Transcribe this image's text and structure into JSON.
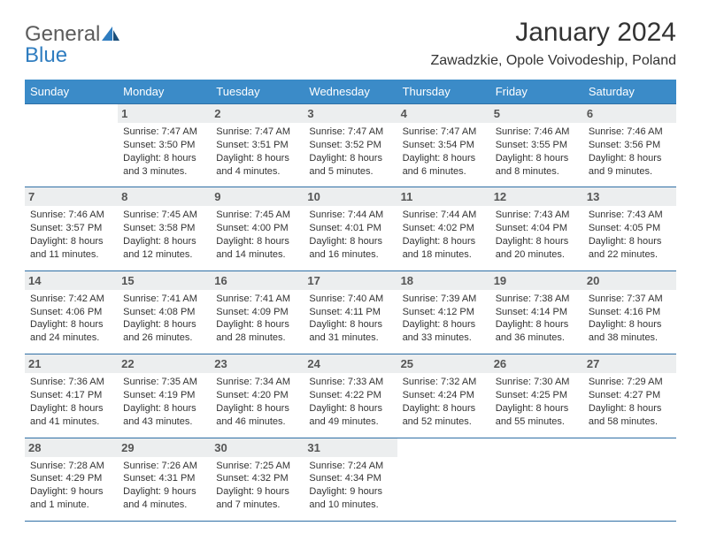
{
  "brand": {
    "word1": "General",
    "word2": "Blue"
  },
  "title": "January 2024",
  "location": "Zawadzkie, Opole Voivodeship, Poland",
  "colors": {
    "header_bg": "#3b8bc8",
    "header_text": "#ffffff",
    "daynum_bg": "#eceeef",
    "cell_border": "#2f6fa5",
    "logo_blue": "#2f7dc0",
    "body_text": "#333333"
  },
  "typography": {
    "title_fontsize": 30,
    "location_fontsize": 16,
    "weekday_fontsize": 13,
    "daynum_fontsize": 13,
    "info_fontsize": 11,
    "font_family": "Arial"
  },
  "weekdays": [
    "Sunday",
    "Monday",
    "Tuesday",
    "Wednesday",
    "Thursday",
    "Friday",
    "Saturday"
  ],
  "weeks": [
    [
      {
        "day": "",
        "sunrise": "",
        "sunset": "",
        "daylight1": "",
        "daylight2": ""
      },
      {
        "day": "1",
        "sunrise": "Sunrise: 7:47 AM",
        "sunset": "Sunset: 3:50 PM",
        "daylight1": "Daylight: 8 hours",
        "daylight2": "and 3 minutes."
      },
      {
        "day": "2",
        "sunrise": "Sunrise: 7:47 AM",
        "sunset": "Sunset: 3:51 PM",
        "daylight1": "Daylight: 8 hours",
        "daylight2": "and 4 minutes."
      },
      {
        "day": "3",
        "sunrise": "Sunrise: 7:47 AM",
        "sunset": "Sunset: 3:52 PM",
        "daylight1": "Daylight: 8 hours",
        "daylight2": "and 5 minutes."
      },
      {
        "day": "4",
        "sunrise": "Sunrise: 7:47 AM",
        "sunset": "Sunset: 3:54 PM",
        "daylight1": "Daylight: 8 hours",
        "daylight2": "and 6 minutes."
      },
      {
        "day": "5",
        "sunrise": "Sunrise: 7:46 AM",
        "sunset": "Sunset: 3:55 PM",
        "daylight1": "Daylight: 8 hours",
        "daylight2": "and 8 minutes."
      },
      {
        "day": "6",
        "sunrise": "Sunrise: 7:46 AM",
        "sunset": "Sunset: 3:56 PM",
        "daylight1": "Daylight: 8 hours",
        "daylight2": "and 9 minutes."
      }
    ],
    [
      {
        "day": "7",
        "sunrise": "Sunrise: 7:46 AM",
        "sunset": "Sunset: 3:57 PM",
        "daylight1": "Daylight: 8 hours",
        "daylight2": "and 11 minutes."
      },
      {
        "day": "8",
        "sunrise": "Sunrise: 7:45 AM",
        "sunset": "Sunset: 3:58 PM",
        "daylight1": "Daylight: 8 hours",
        "daylight2": "and 12 minutes."
      },
      {
        "day": "9",
        "sunrise": "Sunrise: 7:45 AM",
        "sunset": "Sunset: 4:00 PM",
        "daylight1": "Daylight: 8 hours",
        "daylight2": "and 14 minutes."
      },
      {
        "day": "10",
        "sunrise": "Sunrise: 7:44 AM",
        "sunset": "Sunset: 4:01 PM",
        "daylight1": "Daylight: 8 hours",
        "daylight2": "and 16 minutes."
      },
      {
        "day": "11",
        "sunrise": "Sunrise: 7:44 AM",
        "sunset": "Sunset: 4:02 PM",
        "daylight1": "Daylight: 8 hours",
        "daylight2": "and 18 minutes."
      },
      {
        "day": "12",
        "sunrise": "Sunrise: 7:43 AM",
        "sunset": "Sunset: 4:04 PM",
        "daylight1": "Daylight: 8 hours",
        "daylight2": "and 20 minutes."
      },
      {
        "day": "13",
        "sunrise": "Sunrise: 7:43 AM",
        "sunset": "Sunset: 4:05 PM",
        "daylight1": "Daylight: 8 hours",
        "daylight2": "and 22 minutes."
      }
    ],
    [
      {
        "day": "14",
        "sunrise": "Sunrise: 7:42 AM",
        "sunset": "Sunset: 4:06 PM",
        "daylight1": "Daylight: 8 hours",
        "daylight2": "and 24 minutes."
      },
      {
        "day": "15",
        "sunrise": "Sunrise: 7:41 AM",
        "sunset": "Sunset: 4:08 PM",
        "daylight1": "Daylight: 8 hours",
        "daylight2": "and 26 minutes."
      },
      {
        "day": "16",
        "sunrise": "Sunrise: 7:41 AM",
        "sunset": "Sunset: 4:09 PM",
        "daylight1": "Daylight: 8 hours",
        "daylight2": "and 28 minutes."
      },
      {
        "day": "17",
        "sunrise": "Sunrise: 7:40 AM",
        "sunset": "Sunset: 4:11 PM",
        "daylight1": "Daylight: 8 hours",
        "daylight2": "and 31 minutes."
      },
      {
        "day": "18",
        "sunrise": "Sunrise: 7:39 AM",
        "sunset": "Sunset: 4:12 PM",
        "daylight1": "Daylight: 8 hours",
        "daylight2": "and 33 minutes."
      },
      {
        "day": "19",
        "sunrise": "Sunrise: 7:38 AM",
        "sunset": "Sunset: 4:14 PM",
        "daylight1": "Daylight: 8 hours",
        "daylight2": "and 36 minutes."
      },
      {
        "day": "20",
        "sunrise": "Sunrise: 7:37 AM",
        "sunset": "Sunset: 4:16 PM",
        "daylight1": "Daylight: 8 hours",
        "daylight2": "and 38 minutes."
      }
    ],
    [
      {
        "day": "21",
        "sunrise": "Sunrise: 7:36 AM",
        "sunset": "Sunset: 4:17 PM",
        "daylight1": "Daylight: 8 hours",
        "daylight2": "and 41 minutes."
      },
      {
        "day": "22",
        "sunrise": "Sunrise: 7:35 AM",
        "sunset": "Sunset: 4:19 PM",
        "daylight1": "Daylight: 8 hours",
        "daylight2": "and 43 minutes."
      },
      {
        "day": "23",
        "sunrise": "Sunrise: 7:34 AM",
        "sunset": "Sunset: 4:20 PM",
        "daylight1": "Daylight: 8 hours",
        "daylight2": "and 46 minutes."
      },
      {
        "day": "24",
        "sunrise": "Sunrise: 7:33 AM",
        "sunset": "Sunset: 4:22 PM",
        "daylight1": "Daylight: 8 hours",
        "daylight2": "and 49 minutes."
      },
      {
        "day": "25",
        "sunrise": "Sunrise: 7:32 AM",
        "sunset": "Sunset: 4:24 PM",
        "daylight1": "Daylight: 8 hours",
        "daylight2": "and 52 minutes."
      },
      {
        "day": "26",
        "sunrise": "Sunrise: 7:30 AM",
        "sunset": "Sunset: 4:25 PM",
        "daylight1": "Daylight: 8 hours",
        "daylight2": "and 55 minutes."
      },
      {
        "day": "27",
        "sunrise": "Sunrise: 7:29 AM",
        "sunset": "Sunset: 4:27 PM",
        "daylight1": "Daylight: 8 hours",
        "daylight2": "and 58 minutes."
      }
    ],
    [
      {
        "day": "28",
        "sunrise": "Sunrise: 7:28 AM",
        "sunset": "Sunset: 4:29 PM",
        "daylight1": "Daylight: 9 hours",
        "daylight2": "and 1 minute."
      },
      {
        "day": "29",
        "sunrise": "Sunrise: 7:26 AM",
        "sunset": "Sunset: 4:31 PM",
        "daylight1": "Daylight: 9 hours",
        "daylight2": "and 4 minutes."
      },
      {
        "day": "30",
        "sunrise": "Sunrise: 7:25 AM",
        "sunset": "Sunset: 4:32 PM",
        "daylight1": "Daylight: 9 hours",
        "daylight2": "and 7 minutes."
      },
      {
        "day": "31",
        "sunrise": "Sunrise: 7:24 AM",
        "sunset": "Sunset: 4:34 PM",
        "daylight1": "Daylight: 9 hours",
        "daylight2": "and 10 minutes."
      },
      {
        "day": "",
        "sunrise": "",
        "sunset": "",
        "daylight1": "",
        "daylight2": ""
      },
      {
        "day": "",
        "sunrise": "",
        "sunset": "",
        "daylight1": "",
        "daylight2": ""
      },
      {
        "day": "",
        "sunrise": "",
        "sunset": "",
        "daylight1": "",
        "daylight2": ""
      }
    ]
  ]
}
